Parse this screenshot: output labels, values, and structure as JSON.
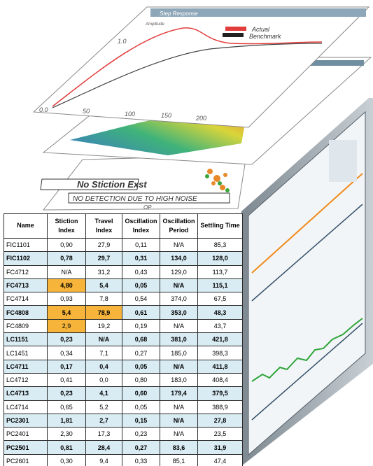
{
  "top_panel": {
    "title": "Step Response",
    "y_label": "Amplitude",
    "y_ticks": [
      "0.0",
      "1.0"
    ],
    "x_ticks": [
      "50",
      "100",
      "150",
      "200"
    ],
    "legend": [
      "Actual",
      "Benchmark"
    ]
  },
  "bottom_panel": {
    "label": "No Stiction Exst",
    "note": "NO DETECTION DUE TO HIGH NOISE",
    "x_label": "OP"
  },
  "table": {
    "header": [
      "Name",
      "Stiction Index",
      "Travel Index",
      "Oscillation Index",
      "Oscillation Period",
      "Settling Time"
    ],
    "rows": [
      [
        "FIC1101",
        "0,90",
        "27,9",
        "0,11",
        "N/A",
        "85,3"
      ],
      [
        "FIC1102",
        "0,78",
        "29,7",
        "0,31",
        "134,0",
        "128,0"
      ],
      [
        "FC4712",
        "N/A",
        "31,2",
        "0,43",
        "129,0",
        "113,7"
      ],
      [
        "FC4713",
        "4,80",
        "5,4",
        "0,05",
        "N/A",
        "115,1"
      ],
      [
        "FC4714",
        "0,93",
        "7,8",
        "0,54",
        "374,0",
        "67,5"
      ],
      [
        "FC4808",
        "5,4",
        "78,9",
        "0,61",
        "353,0",
        "48,3"
      ],
      [
        "FC4809",
        "2,9",
        "19,2",
        "0,19",
        "N/A",
        "43,7"
      ],
      [
        "LC1151",
        "0,23",
        "N/A",
        "0,68",
        "381,0",
        "421,8"
      ],
      [
        "LC1451",
        "0,34",
        "7,1",
        "0,27",
        "185,0",
        "398,3"
      ],
      [
        "LC4711",
        "0,17",
        "0,4",
        "0,05",
        "N/A",
        "411,8"
      ],
      [
        "LC4712",
        "0,41",
        "0,0",
        "0,80",
        "183,0",
        "408,4"
      ],
      [
        "LC4713",
        "0,23",
        "4,1",
        "0,60",
        "179,4",
        "379,5"
      ],
      [
        "LC4714",
        "0,65",
        "5,2",
        "0,05",
        "N/A",
        "388,9"
      ],
      [
        "PC2301",
        "1,81",
        "2,7",
        "0,15",
        "N/A",
        "27,8"
      ],
      [
        "PC2401",
        "2,30",
        "17,3",
        "0,23",
        "N/A",
        "23,5"
      ],
      [
        "PC2501",
        "0,81",
        "28,4",
        "0,27",
        "83,6",
        "31,9"
      ],
      [
        "PC2601",
        "0,30",
        "9,4",
        "0,33",
        "85,1",
        "47,4"
      ]
    ],
    "highlighted_cells": [
      [
        3,
        1
      ],
      [
        5,
        1
      ],
      [
        5,
        2
      ],
      [
        6,
        1
      ]
    ]
  }
}
